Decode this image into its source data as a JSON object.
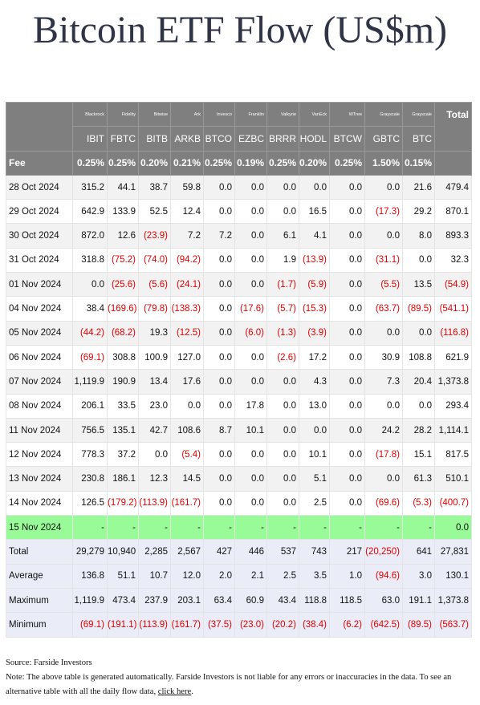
{
  "title": "Bitcoin ETF Flow (US$m)",
  "table": {
    "header": {
      "issuers": [
        "Blackrock",
        "Fidelity",
        "Bitwise",
        "Ark",
        "Invesco",
        "Franklin",
        "Valkyrie",
        "VanEck",
        "WTree",
        "Grayscale",
        "Grayscale"
      ],
      "total": "Total",
      "tickers": [
        "IBIT",
        "FBTC",
        "BITB",
        "ARKB",
        "BTCO",
        "EZBC",
        "BRRR",
        "HODL",
        "BTCW",
        "GBTC",
        "BTC"
      ],
      "fee_label": "Fee",
      "fees": [
        "0.25%",
        "0.25%",
        "0.20%",
        "0.21%",
        "0.25%",
        "0.19%",
        "0.25%",
        "0.20%",
        "0.25%",
        "1.50%",
        "0.15%"
      ]
    },
    "rows": [
      [
        "28 Oct 2024",
        "315.2",
        "44.1",
        "38.7",
        "59.8",
        "0.0",
        "0.0",
        "0.0",
        "0.0",
        "0.0",
        "0.0",
        "21.6",
        "479.4"
      ],
      [
        "29 Oct 2024",
        "642.9",
        "133.9",
        "52.5",
        "12.4",
        "0.0",
        "0.0",
        "0.0",
        "16.5",
        "0.0",
        "(17.3)",
        "29.2",
        "870.1"
      ],
      [
        "30 Oct 2024",
        "872.0",
        "12.6",
        "(23.9)",
        "7.2",
        "7.2",
        "0.0",
        "6.1",
        "4.1",
        "0.0",
        "0.0",
        "8.0",
        "893.3"
      ],
      [
        "31 Oct 2024",
        "318.8",
        "(75.2)",
        "(74.0)",
        "(94.2)",
        "0.0",
        "0.0",
        "1.9",
        "(13.9)",
        "0.0",
        "(31.1)",
        "0.0",
        "32.3"
      ],
      [
        "01 Nov 2024",
        "0.0",
        "(25.6)",
        "(5.6)",
        "(24.1)",
        "0.0",
        "0.0",
        "(1.7)",
        "(5.9)",
        "0.0",
        "(5.5)",
        "13.5",
        "(54.9)"
      ],
      [
        "04 Nov 2024",
        "38.4",
        "(169.6)",
        "(79.8)",
        "(138.3)",
        "0.0",
        "(17.6)",
        "(5.7)",
        "(15.3)",
        "0.0",
        "(63.7)",
        "(89.5)",
        "(541.1)"
      ],
      [
        "05 Nov 2024",
        "(44.2)",
        "(68.2)",
        "19.3",
        "(12.5)",
        "0.0",
        "(6.0)",
        "(1.3)",
        "(3.9)",
        "0.0",
        "0.0",
        "0.0",
        "(116.8)"
      ],
      [
        "06 Nov 2024",
        "(69.1)",
        "308.8",
        "100.9",
        "127.0",
        "0.0",
        "0.0",
        "(2.6)",
        "17.2",
        "0.0",
        "30.9",
        "108.8",
        "621.9"
      ],
      [
        "07 Nov 2024",
        "1,119.9",
        "190.9",
        "13.4",
        "17.6",
        "0.0",
        "0.0",
        "0.0",
        "4.3",
        "0.0",
        "7.3",
        "20.4",
        "1,373.8"
      ],
      [
        "08 Nov 2024",
        "206.1",
        "33.5",
        "23.0",
        "0.0",
        "0.0",
        "17.8",
        "0.0",
        "13.0",
        "0.0",
        "0.0",
        "0.0",
        "293.4"
      ],
      [
        "11 Nov 2024",
        "756.5",
        "135.1",
        "42.7",
        "108.6",
        "8.7",
        "10.1",
        "0.0",
        "0.0",
        "0.0",
        "24.2",
        "28.2",
        "1,114.1"
      ],
      [
        "12 Nov 2024",
        "778.3",
        "37.2",
        "0.0",
        "(5.4)",
        "0.0",
        "0.0",
        "0.0",
        "10.1",
        "0.0",
        "(17.8)",
        "15.1",
        "817.5"
      ],
      [
        "13 Nov 2024",
        "230.8",
        "186.1",
        "12.3",
        "14.5",
        "0.0",
        "0.0",
        "0.0",
        "5.1",
        "0.0",
        "0.0",
        "61.3",
        "510.1"
      ],
      [
        "14 Nov 2024",
        "126.5",
        "(179.2)",
        "(113.9)",
        "(161.7)",
        "0.0",
        "0.0",
        "0.0",
        "2.5",
        "0.0",
        "(69.6)",
        "(5.3)",
        "(400.7)"
      ]
    ],
    "pending_row": [
      "15 Nov 2024",
      "-",
      "-",
      "-",
      "-",
      "-",
      "-",
      "-",
      "-",
      "-",
      "-",
      "-",
      "0.0"
    ],
    "summary": [
      [
        "Total",
        "29,279",
        "10,940",
        "2,285",
        "2,567",
        "427",
        "446",
        "537",
        "743",
        "217",
        "(20,250)",
        "641",
        "27,831"
      ],
      [
        "Average",
        "136.8",
        "51.1",
        "10.7",
        "12.0",
        "2.0",
        "2.1",
        "2.5",
        "3.5",
        "1.0",
        "(94.6)",
        "3.0",
        "130.1"
      ],
      [
        "Maximum",
        "1,119.9",
        "473.4",
        "237.9",
        "203.1",
        "63.4",
        "60.9",
        "43.4",
        "118.8",
        "118.5",
        "63.0",
        "191.1",
        "1,373.8"
      ],
      [
        "Minimum",
        "(69.1)",
        "(191.1)",
        "(113.9)",
        "(161.7)",
        "(37.5)",
        "(23.0)",
        "(20.2)",
        "(38.4)",
        "(6.2)",
        "(642.5)",
        "(89.5)",
        "(563.7)"
      ]
    ]
  },
  "footer": {
    "source": "Source: Farside Investors",
    "note": "Note: The above table is generated automatically. Farside Investors is not liable for any errors or inaccuracies in the data. To see an alternative table with all the daily flow data, ",
    "link": "click here",
    "note_end": "."
  }
}
